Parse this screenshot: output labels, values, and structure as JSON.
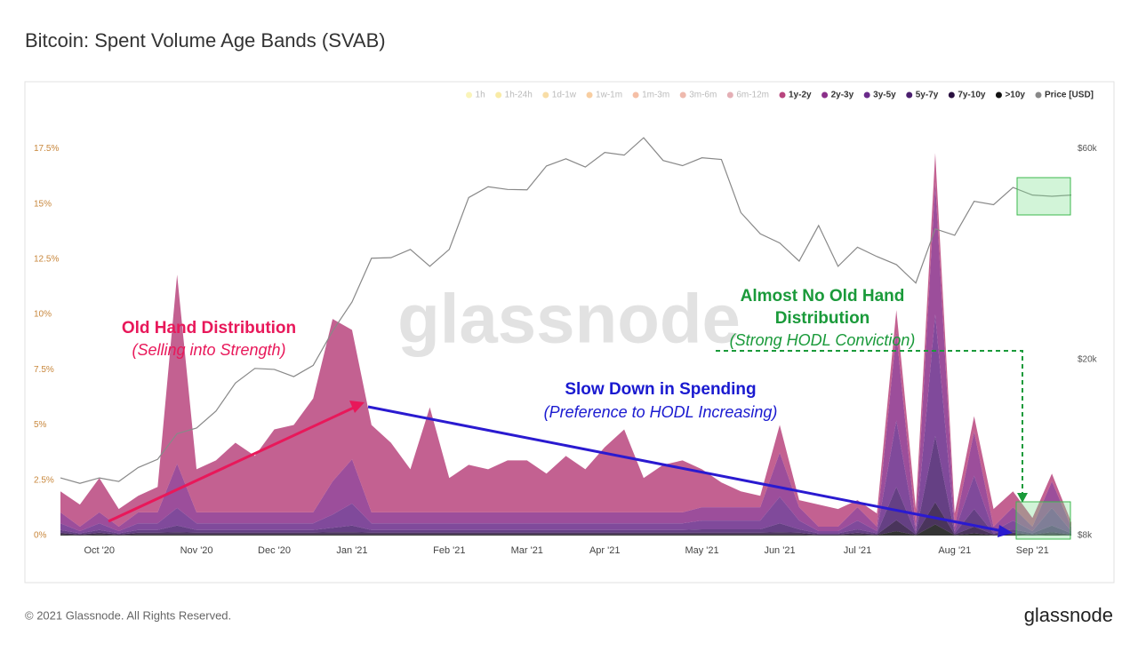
{
  "chart_data": {
    "type": "area",
    "title": "Bitcoin: Spent Volume Age Bands (SVAB)",
    "watermark": "glassnode",
    "footer": "© 2021 Glassnode. All Rights Reserved.",
    "logo": "glassnode",
    "stacked": true,
    "y2scale": "log",
    "annotations": [
      "Old Hand Distribution",
      "(Selling into Strength)",
      "Slow Down in Spending",
      "(Preference to HODL Increasing)",
      "Almost No Old Hand",
      "Distribution",
      "(Strong HODL Conviction)"
    ],
    "categories": [
      null,
      null,
      "Oct '20",
      null,
      null,
      null,
      null,
      "Nov '20",
      null,
      null,
      null,
      "Dec '20",
      null,
      null,
      null,
      "Jan '21",
      null,
      null,
      null,
      null,
      "Feb '21",
      null,
      null,
      null,
      "Mar '21",
      null,
      null,
      null,
      "Apr '21",
      null,
      null,
      null,
      null,
      "May '21",
      null,
      null,
      null,
      "Jun '21",
      null,
      null,
      null,
      "Jul '21",
      null,
      null,
      null,
      null,
      "Aug '21",
      null,
      null,
      null,
      "Sep '21",
      null,
      null
    ],
    "ylim": [
      0,
      18.2
    ],
    "yticks": [
      {
        "value": 0,
        "label": "0%"
      },
      {
        "value": 2.5,
        "label": "2.5%"
      },
      {
        "value": 5,
        "label": "5%"
      },
      {
        "value": 7.5,
        "label": "7.5%"
      },
      {
        "value": 10,
        "label": "10%"
      },
      {
        "value": 12.5,
        "label": "12.5%"
      },
      {
        "value": 15,
        "label": "15%"
      },
      {
        "value": 17.5,
        "label": "17.5%"
      }
    ],
    "y2lim": [
      8000,
      65000
    ],
    "y2ticks": [
      {
        "value": 8000,
        "label": "$8k"
      },
      {
        "value": 20000,
        "label": "$20k"
      },
      {
        "value": 60000,
        "label": "$60k"
      }
    ],
    "series": [
      {
        "name": "1h",
        "color": "#f5e663",
        "visible": false
      },
      {
        "name": "1h-24h",
        "color": "#f2d23a",
        "visible": false
      },
      {
        "name": "1d-1w",
        "color": "#f0b43a",
        "visible": false
      },
      {
        "name": "1w-1m",
        "color": "#f0922f",
        "visible": false
      },
      {
        "name": "1m-3m",
        "color": "#e8703a",
        "visible": false
      },
      {
        "name": "3m-6m",
        "color": "#d9634a",
        "visible": false
      },
      {
        "name": "6m-12m",
        "color": "#c44e5c",
        "visible": false
      },
      {
        "name": "1y-2y",
        "color": "#b8457e",
        "visible": true,
        "values": [
          0.95,
          1.0,
          1.55,
          0.8,
          0.75,
          1.15,
          8.55,
          1.95,
          2.35,
          3.15,
          2.55,
          3.75,
          3.95,
          5.15,
          7.35,
          5.85,
          3.95,
          3.15,
          1.95,
          4.75,
          1.55,
          2.15,
          1.95,
          2.35,
          2.35,
          1.75,
          2.55,
          1.95,
          2.95,
          3.75,
          1.55,
          2.15,
          2.35,
          1.72,
          1.12,
          0.72,
          0.52,
          1.25,
          0.32,
          1.0,
          0.8,
          0.32,
          0.6,
          1.0,
          0.8,
          1.3,
          0.6,
          0.7,
          0.8,
          0.72,
          0.4,
          0.35,
          0.2
        ]
      },
      {
        "name": "2y-3y",
        "color": "#8b2f8a",
        "visible": true,
        "values": [
          0.5,
          0.2,
          0.5,
          0.2,
          0.5,
          0.5,
          2.0,
          0.5,
          0.5,
          0.5,
          0.5,
          0.5,
          0.5,
          0.5,
          1.5,
          2.0,
          0.5,
          0.5,
          0.5,
          0.5,
          0.5,
          0.5,
          0.5,
          0.5,
          0.5,
          0.5,
          0.5,
          0.5,
          0.5,
          0.5,
          0.5,
          0.5,
          0.5,
          0.6,
          0.6,
          0.6,
          0.6,
          2.0,
          0.6,
          0.2,
          0.2,
          0.6,
          0.2,
          4.0,
          0.2,
          6.0,
          0.2,
          2.0,
          0.2,
          0.6,
          0.2,
          1.2,
          0.2
        ]
      },
      {
        "name": "3y-5y",
        "color": "#6a2a8a",
        "visible": true,
        "values": [
          0.3,
          0.1,
          0.3,
          0.1,
          0.3,
          0.3,
          0.8,
          0.3,
          0.3,
          0.3,
          0.3,
          0.3,
          0.3,
          0.3,
          0.6,
          1.0,
          0.3,
          0.3,
          0.3,
          0.3,
          0.3,
          0.3,
          0.3,
          0.3,
          0.3,
          0.3,
          0.3,
          0.3,
          0.3,
          0.3,
          0.3,
          0.3,
          0.3,
          0.4,
          0.4,
          0.4,
          0.4,
          1.2,
          0.4,
          0.1,
          0.1,
          0.4,
          0.1,
          3.0,
          0.1,
          5.5,
          0.1,
          1.5,
          0.1,
          0.4,
          0.1,
          0.8,
          0.1
        ]
      },
      {
        "name": "5y-7y",
        "color": "#4a1f6e",
        "visible": true,
        "values": [
          0.12,
          0.05,
          0.12,
          0.05,
          0.12,
          0.12,
          0.3,
          0.12,
          0.12,
          0.12,
          0.12,
          0.12,
          0.12,
          0.12,
          0.2,
          0.3,
          0.12,
          0.12,
          0.12,
          0.12,
          0.12,
          0.12,
          0.12,
          0.12,
          0.12,
          0.12,
          0.12,
          0.12,
          0.12,
          0.12,
          0.12,
          0.12,
          0.12,
          0.15,
          0.15,
          0.15,
          0.15,
          0.4,
          0.15,
          0.05,
          0.05,
          0.15,
          0.05,
          1.5,
          0.05,
          3.0,
          0.05,
          0.8,
          0.05,
          0.15,
          0.05,
          0.3,
          0.05
        ]
      },
      {
        "name": "7y-10y",
        "color": "#2a1040",
        "visible": true,
        "values": [
          0.08,
          0.03,
          0.08,
          0.03,
          0.08,
          0.08,
          0.1,
          0.08,
          0.08,
          0.08,
          0.08,
          0.08,
          0.08,
          0.08,
          0.1,
          0.1,
          0.08,
          0.08,
          0.08,
          0.08,
          0.08,
          0.08,
          0.08,
          0.08,
          0.08,
          0.08,
          0.08,
          0.08,
          0.08,
          0.08,
          0.08,
          0.08,
          0.08,
          0.08,
          0.08,
          0.08,
          0.08,
          0.1,
          0.08,
          0.03,
          0.03,
          0.08,
          0.03,
          0.5,
          0.03,
          1.0,
          0.03,
          0.3,
          0.03,
          0.08,
          0.03,
          0.1,
          0.03
        ]
      },
      {
        "name": ">10y",
        "color": "#111111",
        "visible": true,
        "values": [
          0.05,
          0.02,
          0.05,
          0.02,
          0.05,
          0.05,
          0.05,
          0.05,
          0.05,
          0.05,
          0.05,
          0.05,
          0.05,
          0.05,
          0.05,
          0.05,
          0.05,
          0.05,
          0.05,
          0.05,
          0.05,
          0.05,
          0.05,
          0.05,
          0.05,
          0.05,
          0.05,
          0.05,
          0.05,
          0.05,
          0.05,
          0.05,
          0.05,
          0.05,
          0.05,
          0.05,
          0.05,
          0.05,
          0.05,
          0.02,
          0.02,
          0.05,
          0.02,
          0.2,
          0.02,
          0.5,
          0.02,
          0.1,
          0.02,
          0.05,
          0.02,
          0.05,
          0.02
        ]
      },
      {
        "name": "Price [USD]",
        "color": "#888888",
        "visible": true,
        "axis": "y2",
        "values": [
          10800,
          10500,
          10800,
          10600,
          11400,
          11900,
          13600,
          14000,
          15300,
          17700,
          19100,
          19000,
          18300,
          19400,
          23200,
          27000,
          33900,
          34000,
          35500,
          32500,
          35500,
          46500,
          49200,
          48500,
          48400,
          54800,
          56900,
          54500,
          58800,
          58000,
          63500,
          56400,
          54900,
          57200,
          56700,
          43000,
          38500,
          36700,
          33400,
          40200,
          32500,
          35900,
          34200,
          32800,
          29800,
          39500,
          38200,
          45600,
          44800,
          49000,
          47100,
          46800,
          47100
        ]
      }
    ]
  }
}
